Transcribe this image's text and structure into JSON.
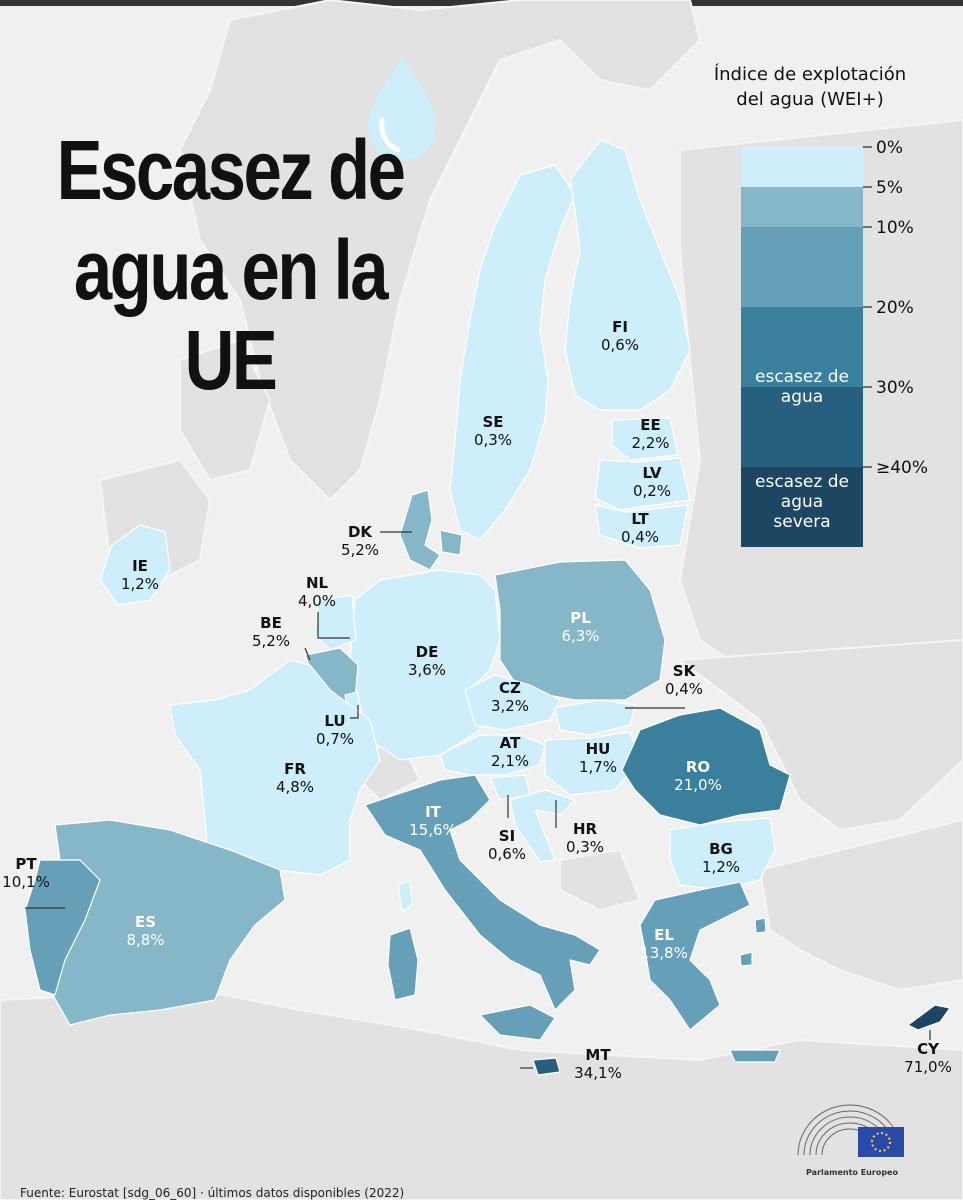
{
  "title": {
    "line1": "Escasez de",
    "line2": "agua en la",
    "line3": "UE"
  },
  "legend": {
    "title_line1": "Índice de explotación",
    "title_line2": "del agua (WEI+)",
    "ticks": [
      "0%",
      "5%",
      "10%",
      "20%",
      "30%",
      "≥40%"
    ],
    "scarcity_label": "escasez de agua",
    "scarcity_line1": "escasez de",
    "scarcity_line2": "agua",
    "severe_label_line1": "escasez de",
    "severe_label_line2": "agua",
    "severe_label_line3": "severa",
    "colors": [
      "#cdeefa",
      "#86b7c8",
      "#669fb8",
      "#3a7f9b",
      "#27607e",
      "#1c4661"
    ]
  },
  "countries": [
    {
      "code": "FI",
      "value": "0,6%"
    },
    {
      "code": "SE",
      "value": "0,3%"
    },
    {
      "code": "EE",
      "value": "2,2%"
    },
    {
      "code": "LV",
      "value": "0,2%"
    },
    {
      "code": "LT",
      "value": "0,4%"
    },
    {
      "code": "DK",
      "value": "5,2%"
    },
    {
      "code": "IE",
      "value": "1,2%"
    },
    {
      "code": "NL",
      "value": "4,0%"
    },
    {
      "code": "BE",
      "value": "5,2%"
    },
    {
      "code": "DE",
      "value": "3,6%"
    },
    {
      "code": "PL",
      "value": "6,3%"
    },
    {
      "code": "SK",
      "value": "0,4%"
    },
    {
      "code": "CZ",
      "value": "3,2%"
    },
    {
      "code": "LU",
      "value": "0,7%"
    },
    {
      "code": "AT",
      "value": "2,1%"
    },
    {
      "code": "HU",
      "value": "1,7%"
    },
    {
      "code": "RO",
      "value": "21,0%"
    },
    {
      "code": "FR",
      "value": "4,8%"
    },
    {
      "code": "IT",
      "value": "15,6%"
    },
    {
      "code": "SI",
      "value": "0,6%"
    },
    {
      "code": "HR",
      "value": "0,3%"
    },
    {
      "code": "BG",
      "value": "1,2%"
    },
    {
      "code": "PT",
      "value": "10,1%"
    },
    {
      "code": "ES",
      "value": "8,8%"
    },
    {
      "code": "EL",
      "value": "13,8%"
    },
    {
      "code": "MT",
      "value": "34,1%"
    },
    {
      "code": "CY",
      "value": "71,0%"
    }
  ],
  "source": "Fuente: Eurostat [sdg_06_60] · últimos datos disponibles (2022)",
  "logo_caption": "Parlamento Europeo"
}
